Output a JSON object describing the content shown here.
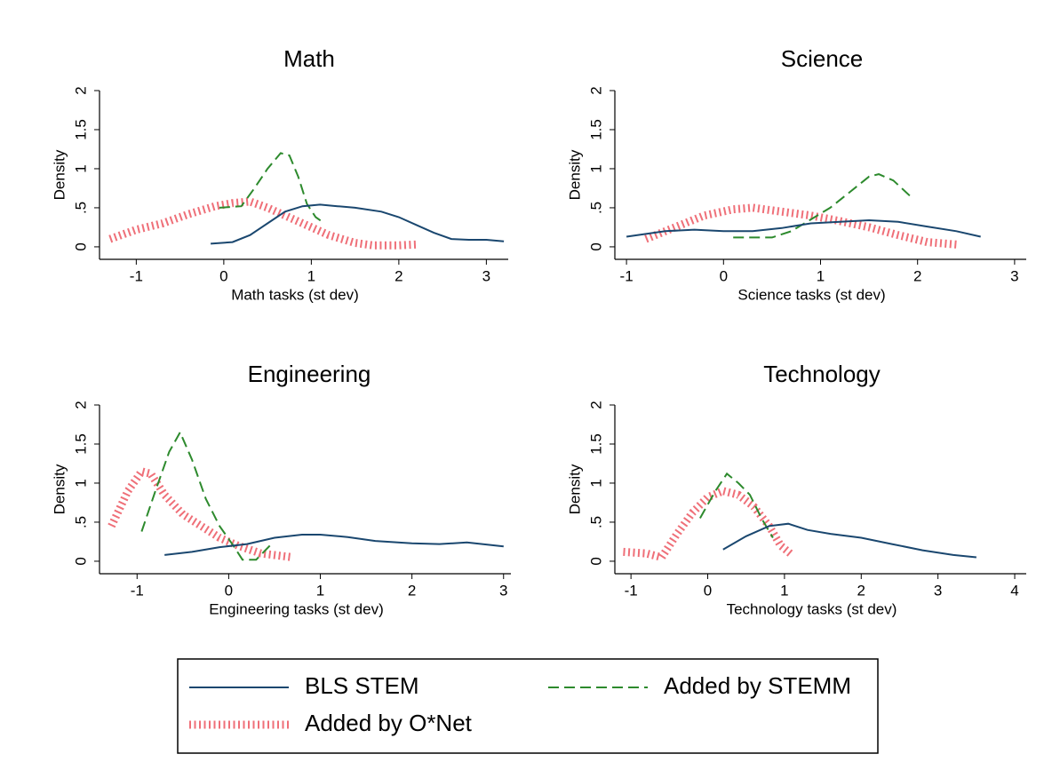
{
  "legend": [
    {
      "name": "BLS STEM",
      "color": "#1a476f",
      "style": "solid"
    },
    {
      "name": "Added by STEMM",
      "color": "#2d8a2d",
      "style": "dash"
    },
    {
      "name": "Added by O*Net",
      "color": "#ef6f78",
      "style": "hatch"
    }
  ],
  "chart_data": [
    {
      "type": "line",
      "title": "Math",
      "x_label": "Math tasks (st dev)",
      "y_label": "Density",
      "xlim": [
        -1.42,
        3.25
      ],
      "ylim": [
        -0.16,
        2.0
      ],
      "xticks": [
        -1,
        0,
        1,
        2,
        3
      ],
      "yticks": [
        0,
        {
          "value": 0.5,
          "label": ".5"
        },
        1,
        1.5,
        2
      ],
      "series": [
        {
          "x": [
            -0.15,
            0.1,
            0.3,
            0.5,
            0.7,
            0.9,
            1.1,
            1.3,
            1.5,
            1.8,
            2.0,
            2.2,
            2.4,
            2.6,
            2.8,
            3.0,
            3.2
          ],
          "values": [
            0.04,
            0.06,
            0.15,
            0.3,
            0.45,
            0.52,
            0.54,
            0.52,
            0.5,
            0.45,
            0.38,
            0.28,
            0.18,
            0.1,
            0.09,
            0.09,
            0.07
          ]
        },
        {
          "x": [
            -0.05,
            0.2,
            0.35,
            0.5,
            0.65,
            0.75,
            0.85,
            0.95,
            1.05,
            1.15
          ],
          "values": [
            0.5,
            0.52,
            0.75,
            1.0,
            1.2,
            1.17,
            0.9,
            0.55,
            0.38,
            0.3
          ]
        },
        {
          "x": [
            -1.3,
            -1.0,
            -0.7,
            -0.4,
            -0.1,
            0.1,
            0.3,
            0.5,
            0.7,
            0.9,
            1.2,
            1.5,
            1.7,
            2.0,
            2.2
          ],
          "values": [
            0.1,
            0.22,
            0.3,
            0.42,
            0.52,
            0.56,
            0.58,
            0.5,
            0.4,
            0.3,
            0.15,
            0.05,
            0.02,
            0.02,
            0.03
          ]
        }
      ]
    },
    {
      "type": "line",
      "title": "Science",
      "x_label": "Science tasks (st dev)",
      "y_label": "Density",
      "xlim": [
        -1.12,
        3.12
      ],
      "ylim": [
        -0.16,
        2.0
      ],
      "xticks": [
        -1,
        0,
        1,
        2,
        3
      ],
      "yticks": [
        0,
        {
          "value": 0.5,
          "label": ".5"
        },
        1,
        1.5,
        2
      ],
      "series": [
        {
          "x": [
            -1,
            -0.6,
            -0.3,
            0,
            0.3,
            0.6,
            0.9,
            1.2,
            1.5,
            1.8,
            2.1,
            2.4,
            2.65
          ],
          "values": [
            0.13,
            0.2,
            0.22,
            0.2,
            0.2,
            0.24,
            0.3,
            0.32,
            0.34,
            0.32,
            0.26,
            0.2,
            0.13
          ]
        },
        {
          "x": [
            0.1,
            0.5,
            0.7,
            0.9,
            1.1,
            1.3,
            1.5,
            1.6,
            1.75,
            1.95
          ],
          "values": [
            0.12,
            0.12,
            0.2,
            0.35,
            0.5,
            0.7,
            0.9,
            0.93,
            0.85,
            0.62
          ]
        },
        {
          "x": [
            -0.8,
            -0.5,
            -0.2,
            0.1,
            0.3,
            0.6,
            0.9,
            1.2,
            1.5,
            1.8,
            2.1,
            2.4
          ],
          "values": [
            0.1,
            0.25,
            0.4,
            0.48,
            0.5,
            0.45,
            0.4,
            0.33,
            0.25,
            0.15,
            0.06,
            0.03
          ]
        }
      ]
    },
    {
      "type": "line",
      "title": "Engineering",
      "x_label": "Engineering tasks (st dev)",
      "y_label": "Density",
      "xlim": [
        -1.41,
        3.08
      ],
      "ylim": [
        -0.16,
        2.0
      ],
      "xticks": [
        -1,
        0,
        1,
        2,
        3
      ],
      "yticks": [
        0,
        {
          "value": 0.5,
          "label": ".5"
        },
        1,
        1.5,
        2
      ],
      "series": [
        {
          "x": [
            -0.7,
            -0.4,
            -0.1,
            0.2,
            0.5,
            0.8,
            1.0,
            1.3,
            1.6,
            2.0,
            2.3,
            2.6,
            3.0
          ],
          "values": [
            0.08,
            0.12,
            0.18,
            0.22,
            0.3,
            0.34,
            0.34,
            0.31,
            0.26,
            0.23,
            0.22,
            0.24,
            0.19
          ]
        },
        {
          "x": [
            -0.95,
            -0.8,
            -0.65,
            -0.53,
            -0.4,
            -0.25,
            -0.1,
            0.05,
            0.15,
            0.3,
            0.45
          ],
          "values": [
            0.38,
            0.9,
            1.4,
            1.65,
            1.3,
            0.8,
            0.45,
            0.2,
            0.02,
            0.02,
            0.2
          ]
        },
        {
          "x": [
            -1.28,
            -1.1,
            -0.95,
            -0.85,
            -0.7,
            -0.5,
            -0.3,
            -0.1,
            0.1,
            0.35,
            0.7
          ],
          "values": [
            0.45,
            0.9,
            1.15,
            1.12,
            0.85,
            0.6,
            0.45,
            0.3,
            0.2,
            0.1,
            0.05
          ]
        }
      ]
    },
    {
      "type": "line",
      "title": "Technology",
      "x_label": "Technology tasks (st dev)",
      "y_label": "Density",
      "xlim": [
        -1.21,
        4.15
      ],
      "ylim": [
        -0.16,
        2.0
      ],
      "xticks": [
        -1,
        0,
        1,
        2,
        3,
        4
      ],
      "yticks": [
        0,
        {
          "value": 0.5,
          "label": ".5"
        },
        1,
        1.5,
        2
      ],
      "series": [
        {
          "x": [
            0.2,
            0.5,
            0.8,
            1.05,
            1.3,
            1.6,
            2.0,
            2.4,
            2.8,
            3.2,
            3.5
          ],
          "values": [
            0.15,
            0.32,
            0.45,
            0.48,
            0.4,
            0.35,
            0.3,
            0.22,
            0.14,
            0.08,
            0.05
          ]
        },
        {
          "x": [
            -0.1,
            0.1,
            0.25,
            0.4,
            0.55,
            0.7,
            0.85
          ],
          "values": [
            0.55,
            0.9,
            1.12,
            1.0,
            0.85,
            0.55,
            0.3
          ]
        },
        {
          "x": [
            -1.1,
            -0.8,
            -0.6,
            -0.4,
            -0.2,
            0,
            0.2,
            0.4,
            0.6,
            0.8,
            0.95,
            1.1
          ],
          "values": [
            0.12,
            0.1,
            0.05,
            0.35,
            0.62,
            0.82,
            0.9,
            0.85,
            0.7,
            0.45,
            0.2,
            0.08
          ]
        }
      ]
    }
  ]
}
